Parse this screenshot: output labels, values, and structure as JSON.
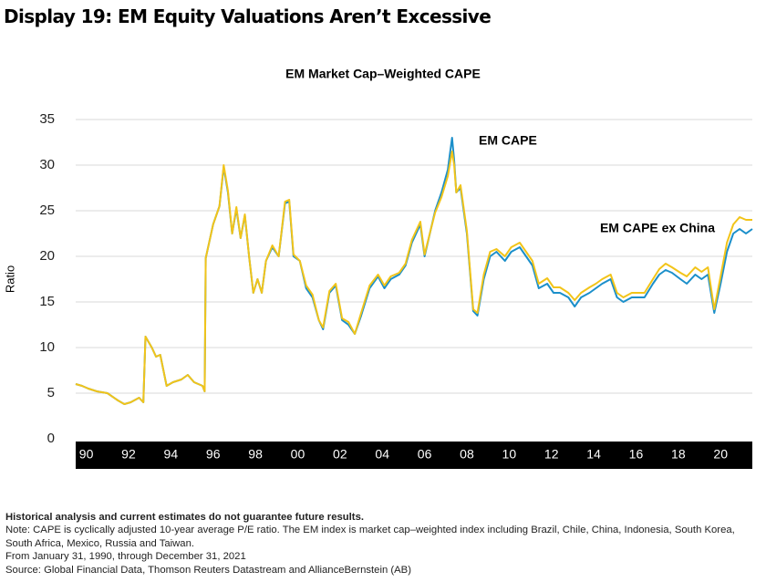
{
  "title": "Display 19: EM Equity Valuations Aren’t Excessive",
  "footnotes": [
    "Historical analysis and current estimates do not guarantee future results.",
    "Note: CAPE is cyclically adjusted 10-year average P/E ratio. The EM index is market cap–weighted index including Brazil, Chile, China, Indonesia, South Korea, South Africa, Mexico, Russia and Taiwan.",
    "From January 31, 1990, through December 31, 2021",
    "Source: Global Financial Data, Thomson Reuters Datastream and AllianceBernstein (AB)"
  ],
  "chart_data": {
    "type": "line",
    "title": "EM Market Cap–Weighted CAPE",
    "y_label": "Ratio",
    "xlim": [
      1990,
      2022
    ],
    "ylim": [
      0,
      35
    ],
    "yticks": [
      0,
      5,
      10,
      15,
      20,
      25,
      30,
      35
    ],
    "grid": true,
    "xticks": [
      {
        "value": 1990.5,
        "label": "90"
      },
      {
        "value": 1992.5,
        "label": "92"
      },
      {
        "value": 1994.5,
        "label": "94"
      },
      {
        "value": 1996.5,
        "label": "96"
      },
      {
        "value": 1998.5,
        "label": "98"
      },
      {
        "value": 2000.5,
        "label": "00"
      },
      {
        "value": 2002.5,
        "label": "02"
      },
      {
        "value": 2004.5,
        "label": "04"
      },
      {
        "value": 2006.5,
        "label": "06"
      },
      {
        "value": 2008.5,
        "label": "08"
      },
      {
        "value": 2010.5,
        "label": "10"
      },
      {
        "value": 2012.5,
        "label": "12"
      },
      {
        "value": 2014.5,
        "label": "14"
      },
      {
        "value": 2016.5,
        "label": "16"
      },
      {
        "value": 2018.5,
        "label": "18"
      },
      {
        "value": 2020.5,
        "label": "20"
      }
    ],
    "x": [
      1990.0,
      1990.3,
      1990.6,
      1991.0,
      1991.5,
      1992.0,
      1992.3,
      1992.6,
      1993.0,
      1993.2,
      1993.3,
      1993.6,
      1993.8,
      1994.0,
      1994.3,
      1994.6,
      1995.0,
      1995.3,
      1995.6,
      1996.0,
      1996.1,
      1996.15,
      1996.5,
      1996.8,
      1997.0,
      1997.2,
      1997.4,
      1997.6,
      1997.8,
      1998.0,
      1998.2,
      1998.4,
      1998.6,
      1998.8,
      1999.0,
      1999.3,
      1999.6,
      1999.9,
      2000.1,
      2000.3,
      2000.6,
      2000.9,
      2001.2,
      2001.5,
      2001.7,
      2002.0,
      2002.3,
      2002.6,
      2002.9,
      2003.2,
      2003.5,
      2003.9,
      2004.3,
      2004.6,
      2004.9,
      2005.3,
      2005.6,
      2005.9,
      2006.3,
      2006.5,
      2006.8,
      2007.0,
      2007.3,
      2007.6,
      2007.8,
      2007.9,
      2008.0,
      2008.2,
      2008.5,
      2008.8,
      2009.0,
      2009.3,
      2009.6,
      2009.9,
      2010.3,
      2010.6,
      2011.0,
      2011.3,
      2011.6,
      2011.9,
      2012.3,
      2012.6,
      2012.9,
      2013.3,
      2013.6,
      2013.9,
      2014.3,
      2014.6,
      2014.9,
      2015.3,
      2015.6,
      2015.9,
      2016.3,
      2016.6,
      2016.9,
      2017.3,
      2017.6,
      2017.9,
      2018.2,
      2018.6,
      2018.9,
      2019.3,
      2019.6,
      2019.9,
      2020.2,
      2020.5,
      2020.8,
      2021.1,
      2021.4,
      2021.7,
      2022.0
    ],
    "series": [
      {
        "name": "EM CAPE",
        "color": "#1b8fca",
        "values": [
          6,
          5.8,
          5.5,
          5.2,
          5.0,
          4.2,
          3.8,
          4.0,
          4.5,
          4.0,
          11.2,
          10.0,
          9.0,
          9.2,
          5.8,
          6.2,
          6.5,
          7.0,
          6.2,
          5.8,
          5.2,
          19.8,
          23.5,
          25.5,
          29.8,
          27.0,
          22.5,
          25.2,
          22.0,
          24.5,
          20.0,
          16.0,
          17.5,
          16.0,
          19.5,
          21.0,
          20.0,
          25.8,
          26.0,
          20.0,
          19.5,
          16.5,
          15.5,
          13.0,
          12.0,
          16.0,
          16.8,
          13.0,
          12.5,
          11.5,
          13.5,
          16.5,
          17.8,
          16.5,
          17.5,
          18.0,
          19.0,
          21.5,
          23.5,
          20.0,
          23.0,
          25.0,
          27.0,
          29.5,
          33.0,
          30.5,
          27.0,
          27.5,
          22.5,
          14.0,
          13.5,
          17.5,
          20.0,
          20.5,
          19.5,
          20.5,
          21.0,
          20.0,
          19.0,
          16.5,
          17.0,
          16.0,
          16.0,
          15.5,
          14.5,
          15.5,
          16.0,
          16.5,
          17.0,
          17.5,
          15.5,
          15.0,
          15.5,
          15.5,
          15.5,
          17.0,
          18.0,
          18.5,
          18.2,
          17.5,
          17.0,
          18.0,
          17.5,
          18.0,
          13.8,
          17.0,
          20.5,
          22.5,
          23.0,
          22.5,
          23.0
        ]
      },
      {
        "name": "EM CAPE ex China",
        "color": "#f2c419",
        "values": [
          6,
          5.8,
          5.5,
          5.2,
          5.0,
          4.2,
          3.8,
          4.0,
          4.5,
          4.0,
          11.2,
          10.0,
          9.0,
          9.2,
          5.8,
          6.2,
          6.5,
          7.0,
          6.2,
          5.8,
          5.2,
          19.8,
          23.5,
          25.5,
          30.0,
          27.2,
          22.5,
          25.4,
          22.0,
          24.6,
          20.0,
          16.0,
          17.5,
          16.0,
          19.5,
          21.2,
          20.0,
          26.0,
          26.2,
          20.2,
          19.5,
          16.8,
          15.8,
          13.0,
          12.2,
          16.2,
          17.0,
          13.2,
          12.8,
          11.5,
          13.8,
          16.8,
          18.0,
          16.8,
          17.8,
          18.2,
          19.2,
          21.8,
          23.8,
          20.2,
          23.0,
          24.8,
          26.5,
          28.8,
          31.5,
          30.0,
          27.0,
          27.8,
          22.8,
          14.2,
          13.8,
          18.0,
          20.5,
          20.8,
          20.0,
          21.0,
          21.5,
          20.5,
          19.5,
          17.0,
          17.6,
          16.6,
          16.6,
          16.0,
          15.2,
          16.0,
          16.6,
          17.0,
          17.5,
          18.0,
          16.0,
          15.5,
          16.0,
          16.0,
          16.0,
          17.5,
          18.6,
          19.2,
          18.8,
          18.2,
          17.8,
          18.8,
          18.3,
          18.8,
          14.2,
          17.8,
          21.5,
          23.5,
          24.3,
          24.0,
          24.0
        ]
      }
    ]
  }
}
